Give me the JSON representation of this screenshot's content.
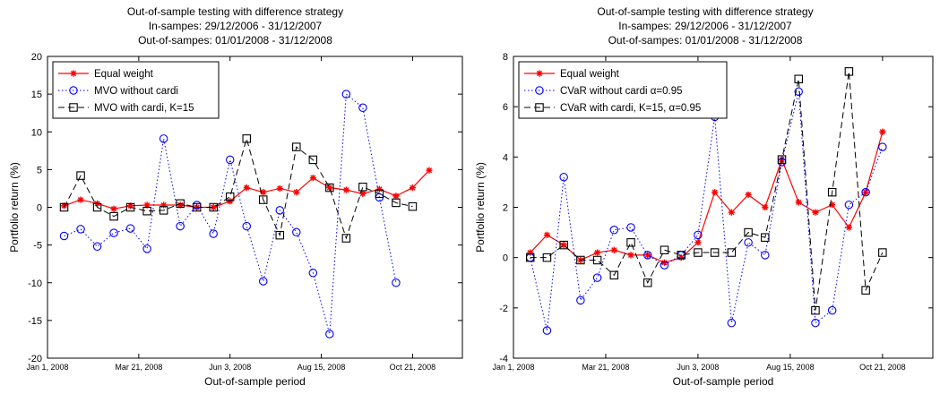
{
  "chart_data": [
    {
      "type": "line",
      "title": "Out-of-sample testing with difference strategy",
      "subtitle_lines": [
        "In-sampes: 29/12/2006 - 31/12/2007",
        "Out-of-sampes: 01/01/2008 - 31/12/2008"
      ],
      "xlabel": "Out-of-sample period",
      "ylabel": "Portfolio return (%)",
      "ylim": [
        -20,
        20
      ],
      "yticks": [
        -20,
        -15,
        -10,
        -5,
        0,
        5,
        10,
        15,
        20
      ],
      "xlim": [
        0,
        25
      ],
      "xticks": [
        {
          "pos": 0,
          "label": "Jan 1, 2008"
        },
        {
          "pos": 5.5,
          "label": "Mar 21, 2008"
        },
        {
          "pos": 11,
          "label": "Jun 3, 2008"
        },
        {
          "pos": 16.5,
          "label": "Aug 15, 2008"
        },
        {
          "pos": 22,
          "label": "Oct 21, 2008"
        }
      ],
      "legend_position": "top-left",
      "x": [
        1,
        2,
        3,
        4,
        5,
        6,
        7,
        8,
        9,
        10,
        11,
        12,
        13,
        14,
        15,
        16,
        17,
        18,
        19,
        20,
        21,
        22,
        23,
        24
      ],
      "series": [
        {
          "name": "Equal weight",
          "color": "#ff0000",
          "style": "solid",
          "marker": "star",
          "values": [
            0.2,
            1.0,
            0.5,
            -0.2,
            0.2,
            0.3,
            0.3,
            0.3,
            0.0,
            0.0,
            0.8,
            2.6,
            2.0,
            2.5,
            2.0,
            3.9,
            2.6,
            2.3,
            1.8,
            2.4,
            1.5,
            2.6,
            4.9,
            null
          ]
        },
        {
          "name": "MVO without cardi",
          "color": "#0000ff",
          "style": "dotted",
          "marker": "circle",
          "values": [
            -3.8,
            -2.9,
            -5.2,
            -3.4,
            -2.8,
            -5.5,
            9.1,
            -2.5,
            0.3,
            -3.5,
            6.3,
            -2.5,
            -9.8,
            -0.4,
            -3.3,
            -8.7,
            -16.8,
            15.0,
            13.2,
            1.3,
            -10.0,
            null,
            null,
            null
          ]
        },
        {
          "name": "MVO with cardi, K=15",
          "color": "#000000",
          "style": "dashed",
          "marker": "square",
          "values": [
            0.0,
            4.2,
            0.0,
            -1.2,
            0.0,
            -0.5,
            -0.4,
            0.5,
            0.0,
            0.0,
            1.4,
            9.1,
            1.0,
            -3.7,
            8.0,
            6.3,
            2.6,
            -4.1,
            2.7,
            1.8,
            0.6,
            0.1,
            null,
            null
          ]
        }
      ]
    },
    {
      "type": "line",
      "title": "Out-of-sample testing with difference strategy",
      "subtitle_lines": [
        "In-sampes: 29/12/2006 - 31/12/2007",
        "Out-of-sampes: 01/01/2008 - 31/12/2008"
      ],
      "xlabel": "Out-of-sample period",
      "ylabel": "Portfolio return (%)",
      "ylim": [
        -4,
        8
      ],
      "yticks": [
        -4,
        -2,
        0,
        2,
        4,
        6,
        8
      ],
      "xlim": [
        0,
        25
      ],
      "xticks": [
        {
          "pos": 0,
          "label": "Jan 1, 2008"
        },
        {
          "pos": 5.5,
          "label": "Mar 21, 2008"
        },
        {
          "pos": 11,
          "label": "Jun 3, 2008"
        },
        {
          "pos": 16.5,
          "label": "Aug 15, 2008"
        },
        {
          "pos": 22,
          "label": "Oct 21, 2008"
        }
      ],
      "legend_position": "top-left",
      "x": [
        1,
        2,
        3,
        4,
        5,
        6,
        7,
        8,
        9,
        10,
        11,
        12,
        13,
        14,
        15,
        16,
        17,
        18,
        19,
        20,
        21,
        22,
        23,
        24
      ],
      "series": [
        {
          "name": "Equal weight",
          "color": "#ff0000",
          "style": "solid",
          "marker": "star",
          "values": [
            0.2,
            0.9,
            0.5,
            -0.1,
            0.2,
            0.3,
            0.1,
            0.1,
            -0.2,
            0.0,
            0.6,
            2.6,
            1.8,
            2.5,
            2.0,
            3.9,
            2.2,
            1.8,
            2.1,
            1.2,
            2.6,
            5.0,
            null,
            null
          ]
        },
        {
          "name": "CVaR without cardi α=0.95",
          "color": "#0000ff",
          "style": "dotted",
          "marker": "circle",
          "values": [
            0.0,
            -2.9,
            3.2,
            -1.7,
            -0.8,
            1.1,
            1.2,
            0.1,
            -0.3,
            0.1,
            0.9,
            5.6,
            -2.6,
            0.6,
            0.1,
            3.8,
            6.6,
            -2.6,
            -2.1,
            2.1,
            2.6,
            4.4,
            null,
            null
          ]
        },
        {
          "name": "CVaR with cardi, K=15, α=0.95",
          "color": "#000000",
          "style": "dashed",
          "marker": "square",
          "values": [
            0.0,
            0.0,
            0.5,
            -0.1,
            -0.1,
            -0.7,
            0.6,
            -1.0,
            0.3,
            0.1,
            0.2,
            0.2,
            0.2,
            1.0,
            0.8,
            3.9,
            7.1,
            -2.1,
            2.6,
            7.4,
            -1.3,
            0.2,
            null,
            null
          ]
        }
      ]
    }
  ]
}
